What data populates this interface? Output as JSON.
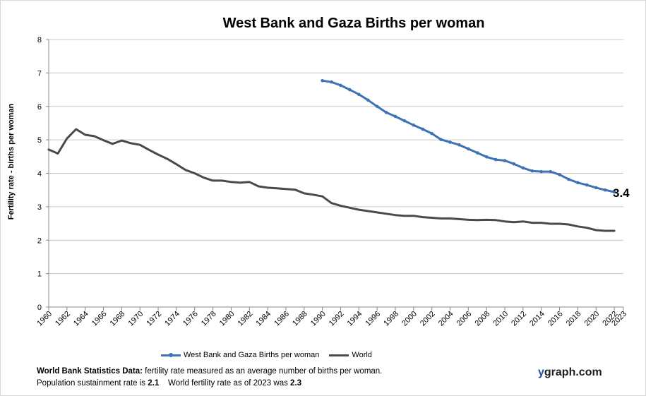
{
  "chart_data": {
    "type": "line",
    "title": "West Bank and Gaza Births per woman",
    "ylabel": "Fertility rate  - births per woman",
    "xlabel": "",
    "ylim": [
      0,
      8
    ],
    "xlim": [
      1960,
      2023
    ],
    "yticks": [
      "0",
      "1",
      "2",
      "3",
      "4",
      "5",
      "6",
      "7",
      "8"
    ],
    "xticks": [
      "1960",
      "1962",
      "1964",
      "1966",
      "1968",
      "1970",
      "1972",
      "1974",
      "1976",
      "1978",
      "1980",
      "1982",
      "1984",
      "1986",
      "1988",
      "1990",
      "1992",
      "1994",
      "1996",
      "1998",
      "2000",
      "2002",
      "2004",
      "2006",
      "2008",
      "2010",
      "2012",
      "2014",
      "2016",
      "2018",
      "2020",
      "2022",
      "2023"
    ],
    "grid": true,
    "legend_position": "bottom",
    "end_label": "3.4",
    "series": [
      {
        "name": "West Bank and Gaza Births per woman",
        "color": "#3d72b4",
        "markers": true,
        "x": [
          1990,
          1991,
          1992,
          1993,
          1994,
          1995,
          1996,
          1997,
          1998,
          1999,
          2000,
          2001,
          2002,
          2003,
          2004,
          2005,
          2006,
          2007,
          2008,
          2009,
          2010,
          2011,
          2012,
          2013,
          2014,
          2015,
          2016,
          2017,
          2018,
          2019,
          2020,
          2021,
          2022
        ],
        "values": [
          6.77,
          6.73,
          6.63,
          6.5,
          6.36,
          6.19,
          6.0,
          5.82,
          5.7,
          5.57,
          5.44,
          5.32,
          5.19,
          5.01,
          4.93,
          4.85,
          4.73,
          4.61,
          4.49,
          4.41,
          4.38,
          4.28,
          4.16,
          4.07,
          4.05,
          4.05,
          3.96,
          3.82,
          3.72,
          3.65,
          3.57,
          3.5,
          3.44
        ]
      },
      {
        "name": "World",
        "color": "#4a4a4a",
        "markers": false,
        "x": [
          1960,
          1961,
          1962,
          1963,
          1964,
          1965,
          1966,
          1967,
          1968,
          1969,
          1970,
          1971,
          1972,
          1973,
          1974,
          1975,
          1976,
          1977,
          1978,
          1979,
          1980,
          1981,
          1982,
          1983,
          1984,
          1985,
          1986,
          1987,
          1988,
          1989,
          1990,
          1991,
          1992,
          1993,
          1994,
          1995,
          1996,
          1997,
          1998,
          1999,
          2000,
          2001,
          2002,
          2003,
          2004,
          2005,
          2006,
          2007,
          2008,
          2009,
          2010,
          2011,
          2012,
          2013,
          2014,
          2015,
          2016,
          2017,
          2018,
          2019,
          2020,
          2021,
          2022
        ],
        "values": [
          4.71,
          4.59,
          5.04,
          5.32,
          5.15,
          5.11,
          4.99,
          4.88,
          4.98,
          4.9,
          4.85,
          4.7,
          4.56,
          4.43,
          4.27,
          4.1,
          4.0,
          3.87,
          3.78,
          3.78,
          3.74,
          3.72,
          3.74,
          3.61,
          3.57,
          3.55,
          3.53,
          3.51,
          3.4,
          3.36,
          3.31,
          3.11,
          3.03,
          2.97,
          2.91,
          2.87,
          2.83,
          2.79,
          2.75,
          2.73,
          2.73,
          2.69,
          2.67,
          2.65,
          2.65,
          2.63,
          2.61,
          2.6,
          2.61,
          2.6,
          2.56,
          2.54,
          2.56,
          2.52,
          2.52,
          2.49,
          2.49,
          2.47,
          2.41,
          2.37,
          2.3,
          2.28,
          2.28
        ]
      }
    ]
  },
  "footer": {
    "line1_bold": "World Bank Statistics Data:",
    "line1_rest": " fertility rate measured as an average number  of births per woman.",
    "line2_a": "Population sustainment rate is ",
    "line2_b": "2.1",
    "line2_c": "    World fertility rate as of 2023 was ",
    "line2_d": "2.3"
  },
  "brand": {
    "y": "y",
    "rest": "graph.com"
  }
}
